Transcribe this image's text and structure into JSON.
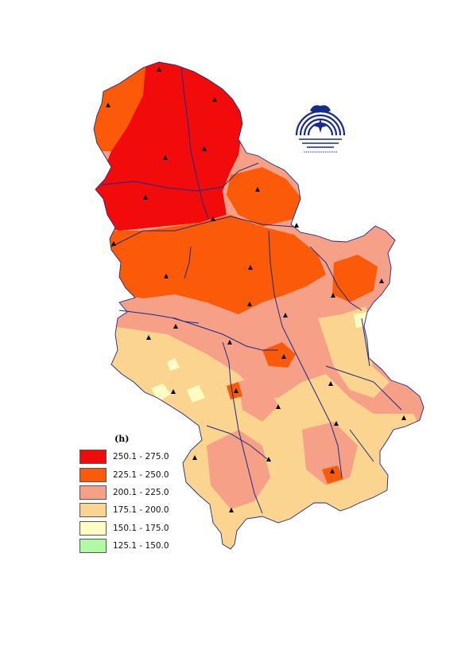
{
  "legend": {
    "title": "(h)",
    "classes": [
      {
        "label": "250.1 - 275.0",
        "color": "#f20b0b"
      },
      {
        "label": "225.1 - 250.0",
        "color": "#fb5a08"
      },
      {
        "label": "200.1 - 225.0",
        "color": "#f7a088"
      },
      {
        "label": "175.1 - 200.0",
        "color": "#fbd58f"
      },
      {
        "label": "150.1 - 175.0",
        "color": "#fffdc4"
      },
      {
        "label": "125.1 - 150.0",
        "color": "#b1f9a5"
      }
    ]
  },
  "colors": {
    "river": "#1a2a8a",
    "border": "#1a2a8a",
    "station": "#000000",
    "logo": "#1a2a8a"
  },
  "icons": {
    "station_marker": "triangle",
    "logo": "meteorological-service-emblem"
  }
}
